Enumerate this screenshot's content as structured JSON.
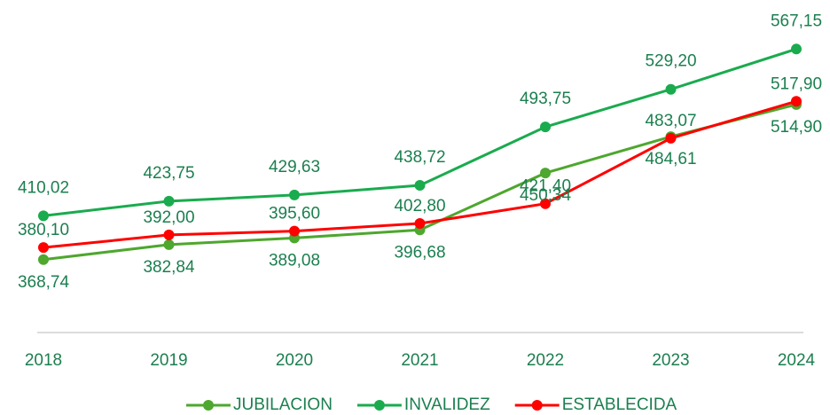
{
  "chart_data": {
    "type": "line",
    "categories": [
      "2018",
      "2019",
      "2020",
      "2021",
      "2022",
      "2023",
      "2024"
    ],
    "series": [
      {
        "name": "JUBILACION",
        "color": "#4ea72e",
        "values": [
          368.74,
          382.84,
          389.08,
          396.68,
          450.34,
          484.61,
          514.9
        ],
        "value_labels": [
          "368,74",
          "382,84",
          "389,08",
          "396,68",
          "450,34",
          "484,61",
          "514,90"
        ]
      },
      {
        "name": "INVALIDEZ",
        "color": "#1aab4e",
        "values": [
          410.02,
          423.75,
          429.63,
          438.72,
          493.75,
          529.2,
          567.15
        ],
        "value_labels": [
          "410,02",
          "423,75",
          "429,63",
          "438,72",
          "493,75",
          "529,20",
          "567,15"
        ]
      },
      {
        "name": "ESTABLECIDA",
        "color": "#ff0000",
        "values": [
          380.1,
          392.0,
          395.6,
          402.8,
          421.4,
          483.07,
          517.9
        ],
        "value_labels": [
          "380,10",
          "392,00",
          "395,60",
          "402,80",
          "421,40",
          "483,07",
          "517,90"
        ]
      }
    ],
    "ylim": [
      300,
      600
    ],
    "legend": "bottom"
  }
}
